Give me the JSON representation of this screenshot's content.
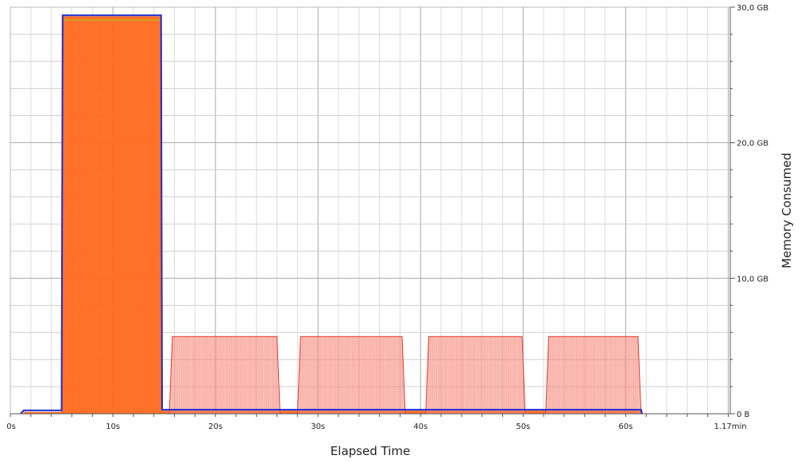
{
  "chart_data": {
    "type": "area",
    "title": "",
    "xlabel": "Elapsed Time",
    "ylabel": "Memory Consumed",
    "x_unit": "s",
    "xlim": [
      0,
      70.2
    ],
    "ylim": [
      0,
      30
    ],
    "y_unit": "GB",
    "grid": true,
    "y_axis_side": "right",
    "x_ticks": [
      {
        "value": 0,
        "label": "0s"
      },
      {
        "value": 10,
        "label": "10s"
      },
      {
        "value": 20,
        "label": "20s"
      },
      {
        "value": 30,
        "label": "30s"
      },
      {
        "value": 40,
        "label": "40s"
      },
      {
        "value": 50,
        "label": "50s"
      },
      {
        "value": 60,
        "label": "60s"
      },
      {
        "value": 70.2,
        "label": "1.17min"
      }
    ],
    "y_ticks": [
      {
        "value": 0,
        "label": "0 B"
      },
      {
        "value": 10,
        "label": "10,0 GB"
      },
      {
        "value": 20,
        "label": "20,0 GB"
      },
      {
        "value": 30,
        "label": "30,0 GB"
      }
    ],
    "series": [
      {
        "color": "#ff6a1f",
        "stroke": "#ff6a1f",
        "opacity": 0.95,
        "points": [
          [
            1.3,
            0.1
          ],
          [
            5,
            0.1
          ],
          [
            5.1,
            29.3
          ],
          [
            14.7,
            29.3
          ],
          [
            14.8,
            0.2
          ],
          [
            61.5,
            0.2
          ],
          [
            61.6,
            0
          ]
        ]
      },
      {
        "color": "#f88f82",
        "stroke": "#e8352a",
        "opacity": 0.55,
        "points": [
          [
            15.5,
            0
          ],
          [
            15.8,
            5.7
          ],
          [
            26,
            5.7
          ],
          [
            26.3,
            0
          ],
          [
            28,
            0
          ],
          [
            28.3,
            5.7
          ],
          [
            38.2,
            5.7
          ],
          [
            38.5,
            0
          ],
          [
            40.5,
            0
          ],
          [
            40.8,
            5.7
          ],
          [
            49.9,
            5.7
          ],
          [
            50.2,
            0
          ],
          [
            52.2,
            0
          ],
          [
            52.5,
            5.7
          ],
          [
            61.2,
            5.7
          ],
          [
            61.5,
            0
          ]
        ]
      },
      {
        "color": "#d4a020",
        "stroke": "#d4a020",
        "opacity": 1,
        "points": [
          [
            5.1,
            29.05
          ],
          [
            14.7,
            29.05
          ]
        ],
        "line_only": true
      },
      {
        "color": "#1a2bd6",
        "stroke": "#1a2bd6",
        "opacity": 1,
        "line_only": true,
        "points": [
          [
            1,
            0
          ],
          [
            1.3,
            0.25
          ],
          [
            5,
            0.25
          ],
          [
            5.1,
            29.4
          ],
          [
            14.7,
            29.4
          ],
          [
            14.8,
            0.3
          ],
          [
            61.5,
            0.3
          ],
          [
            61.6,
            0
          ]
        ]
      }
    ],
    "colors": {
      "grid": "#c8c8c8",
      "axis": "#555555",
      "baseline_line": "#1a2bd6"
    }
  }
}
